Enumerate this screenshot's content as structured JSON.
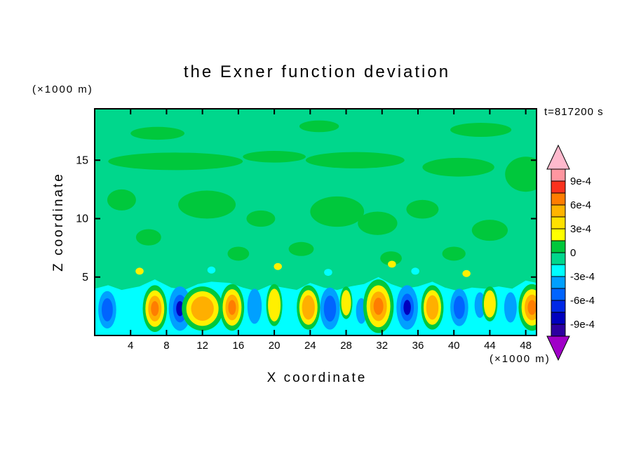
{
  "chart_data": {
    "type": "contour",
    "title": "the Exner function deviation",
    "annotation": "t=817200 s",
    "xlabel": "X coordinate",
    "xunit": "(×1000 m)",
    "ylabel": "Z coordinate",
    "yunit": "(×1000 m)",
    "x_range_km": [
      0,
      49.2
    ],
    "z_range_km": [
      0,
      19.4
    ],
    "x_ticks": [
      4,
      8,
      12,
      16,
      20,
      24,
      28,
      32,
      36,
      40,
      44,
      48
    ],
    "y_ticks": [
      5,
      10,
      15
    ],
    "colorbar": {
      "position": "right",
      "boundaries_e4": [
        10.5,
        9,
        7.5,
        6,
        4.5,
        3,
        1.5,
        0,
        -1.5,
        -3,
        -4.5,
        -6,
        -7.5,
        -9,
        -10.5
      ],
      "labels": [
        "9e-4",
        "6e-4",
        "3e-4",
        "0",
        "-3e-4",
        "-6e-4",
        "-9e-4"
      ],
      "label_boundary_indices": [
        1,
        3,
        5,
        7,
        9,
        11,
        13
      ],
      "segment_colors_top_to_bottom": [
        "#FF96A0",
        "#FA321E",
        "#FF7D00",
        "#FFB400",
        "#FFE100",
        "#FFFF00",
        "#00C83C",
        "#00D78C",
        "#00FFFF",
        "#00A0FF",
        "#0064FF",
        "#0028E6",
        "#0000BE",
        "#2D00A0"
      ],
      "over_arrow_color": "#FFB9CD",
      "under_arrow_color": "#A000C8"
    },
    "field": {
      "background_color": "#00D78C",
      "patch_color": "#00C83C",
      "band_color": "#00FFFF",
      "pos_ring_colors": [
        "#00C83C",
        "#FFF000",
        "#FFAF00",
        "#FF7D00"
      ],
      "neg_ring_colors": [
        "#00A0FF",
        "#0064FF",
        "#0000BE"
      ],
      "band_top_profile": [
        [
          0,
          4.0
        ],
        [
          1.5,
          4.3
        ],
        [
          3,
          3.9
        ],
        [
          5,
          4.2
        ],
        [
          6.7,
          4.8
        ],
        [
          8.5,
          4.1
        ],
        [
          10,
          3.9
        ],
        [
          11.5,
          4.4
        ],
        [
          13,
          4.6
        ],
        [
          15,
          4.5
        ],
        [
          16.5,
          4.1
        ],
        [
          18,
          3.8
        ],
        [
          19.5,
          4.3
        ],
        [
          21,
          4.1
        ],
        [
          22.5,
          3.9
        ],
        [
          24,
          4.5
        ],
        [
          25.5,
          4.1
        ],
        [
          27,
          3.9
        ],
        [
          28.5,
          4.2
        ],
        [
          30,
          4.4
        ],
        [
          31.6,
          5.0
        ],
        [
          33,
          4.4
        ],
        [
          34.5,
          4.0
        ],
        [
          36,
          4.2
        ],
        [
          37.6,
          4.6
        ],
        [
          39,
          4.1
        ],
        [
          40.5,
          3.8
        ],
        [
          42,
          4.1
        ],
        [
          43.5,
          4.0
        ],
        [
          45,
          4.2
        ],
        [
          46.5,
          4.0
        ],
        [
          48,
          4.7
        ],
        [
          49.2,
          4.5
        ]
      ],
      "patches": [
        {
          "x": 9,
          "z": 14.9,
          "rx": 7.5,
          "rz": 0.75
        },
        {
          "x": 20,
          "z": 15.3,
          "rx": 3.5,
          "rz": 0.5
        },
        {
          "x": 29,
          "z": 15.0,
          "rx": 5.5,
          "rz": 0.7
        },
        {
          "x": 40.5,
          "z": 14.4,
          "rx": 4.0,
          "rz": 0.8
        },
        {
          "x": 48,
          "z": 13.8,
          "rx": 2.3,
          "rz": 1.5
        },
        {
          "x": 12.5,
          "z": 11.2,
          "rx": 3.2,
          "rz": 1.2
        },
        {
          "x": 18.5,
          "z": 10.0,
          "rx": 1.6,
          "rz": 0.7
        },
        {
          "x": 27,
          "z": 10.6,
          "rx": 3.0,
          "rz": 1.3
        },
        {
          "x": 31.5,
          "z": 9.6,
          "rx": 2.2,
          "rz": 1.0
        },
        {
          "x": 36.5,
          "z": 10.8,
          "rx": 1.8,
          "rz": 0.8
        },
        {
          "x": 44,
          "z": 9.0,
          "rx": 2.0,
          "rz": 0.9
        },
        {
          "x": 3,
          "z": 11.6,
          "rx": 1.6,
          "rz": 0.9
        },
        {
          "x": 6,
          "z": 8.4,
          "rx": 1.4,
          "rz": 0.7
        },
        {
          "x": 16,
          "z": 7.0,
          "rx": 1.2,
          "rz": 0.6
        },
        {
          "x": 23,
          "z": 7.4,
          "rx": 1.4,
          "rz": 0.6
        },
        {
          "x": 33,
          "z": 6.6,
          "rx": 1.2,
          "rz": 0.6
        },
        {
          "x": 40,
          "z": 7.0,
          "rx": 1.3,
          "rz": 0.6
        },
        {
          "x": 7,
          "z": 17.3,
          "rx": 3.0,
          "rz": 0.55
        },
        {
          "x": 43,
          "z": 17.6,
          "rx": 3.4,
          "rz": 0.6
        },
        {
          "x": 25,
          "z": 17.9,
          "rx": 2.2,
          "rz": 0.5
        }
      ],
      "pos_blobs": [
        {
          "x": 6.7,
          "z": 2.3,
          "rx": 1.35,
          "rz": 2.0,
          "intensity": 3
        },
        {
          "x": 12.0,
          "z": 2.3,
          "rx": 2.3,
          "rz": 1.9,
          "intensity": 2
        },
        {
          "x": 15.3,
          "z": 2.4,
          "rx": 1.35,
          "rz": 2.0,
          "intensity": 3
        },
        {
          "x": 20.0,
          "z": 2.6,
          "rx": 0.9,
          "rz": 1.8,
          "intensity": 1
        },
        {
          "x": 23.8,
          "z": 2.4,
          "rx": 1.3,
          "rz": 1.9,
          "intensity": 2
        },
        {
          "x": 28.0,
          "z": 2.8,
          "rx": 0.7,
          "rz": 1.4,
          "intensity": 1
        },
        {
          "x": 31.6,
          "z": 2.5,
          "rx": 1.7,
          "rz": 2.3,
          "intensity": 3
        },
        {
          "x": 37.6,
          "z": 2.4,
          "rx": 1.25,
          "rz": 1.9,
          "intensity": 2
        },
        {
          "x": 44.0,
          "z": 2.7,
          "rx": 0.85,
          "rz": 1.5,
          "intensity": 1
        },
        {
          "x": 48.7,
          "z": 2.4,
          "rx": 1.5,
          "rz": 2.0,
          "intensity": 3
        }
      ],
      "neg_blobs": [
        {
          "x": 1.4,
          "z": 2.2,
          "rx": 1.0,
          "rz": 1.6,
          "intensity": 2
        },
        {
          "x": 9.5,
          "z": 2.3,
          "rx": 1.25,
          "rz": 1.9,
          "intensity": 3
        },
        {
          "x": 17.8,
          "z": 2.5,
          "rx": 0.8,
          "rz": 1.5,
          "intensity": 1
        },
        {
          "x": 26.2,
          "z": 2.3,
          "rx": 1.1,
          "rz": 1.8,
          "intensity": 2
        },
        {
          "x": 29.7,
          "z": 2.1,
          "rx": 0.6,
          "rz": 1.1,
          "intensity": 1
        },
        {
          "x": 34.8,
          "z": 2.4,
          "rx": 1.2,
          "rz": 1.9,
          "intensity": 3
        },
        {
          "x": 40.6,
          "z": 2.4,
          "rx": 1.0,
          "rz": 1.6,
          "intensity": 2
        },
        {
          "x": 42.9,
          "z": 2.6,
          "rx": 0.6,
          "rz": 1.1,
          "intensity": 1
        },
        {
          "x": 46.3,
          "z": 2.4,
          "rx": 0.7,
          "rz": 1.3,
          "intensity": 1
        }
      ],
      "specks": [
        {
          "x": 5.0,
          "z": 5.5,
          "c": "yellow"
        },
        {
          "x": 20.4,
          "z": 5.9,
          "c": "yellow"
        },
        {
          "x": 26.0,
          "z": 5.4,
          "c": "cyan"
        },
        {
          "x": 33.1,
          "z": 6.1,
          "c": "yellow"
        },
        {
          "x": 35.7,
          "z": 5.5,
          "c": "cyan"
        },
        {
          "x": 41.4,
          "z": 5.3,
          "c": "yellow"
        },
        {
          "x": 13.0,
          "z": 5.6,
          "c": "cyan"
        }
      ]
    }
  }
}
